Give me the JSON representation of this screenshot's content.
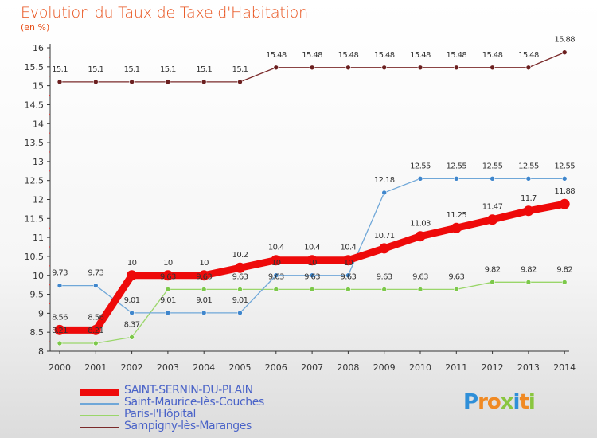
{
  "title": "Evolution du Taux de Taxe d'Habitation",
  "subtitle": "(en %)",
  "logo": {
    "text": [
      "P",
      "r",
      "o",
      "x",
      "i",
      "t",
      "i"
    ],
    "colors": [
      "#2f8fd8",
      "#f08a24",
      "#f08a24",
      "#8ac63f",
      "#2f8fd8",
      "#f08a24",
      "#8ac63f"
    ]
  },
  "chart_data": {
    "type": "line",
    "x": [
      "2000",
      "2001",
      "2002",
      "2003",
      "2004",
      "2005",
      "2006",
      "2007",
      "2008",
      "2009",
      "2010",
      "2011",
      "2012",
      "2013",
      "2014"
    ],
    "ylim": [
      8,
      16
    ],
    "yticks": [
      "8",
      "8.5",
      "9",
      "9.5",
      "10",
      "10.5",
      "11",
      "11.5",
      "12",
      "12.5",
      "13",
      "13.5",
      "14",
      "14.5",
      "15",
      "15.5",
      "16"
    ],
    "grid": false,
    "legend_position": "bottom-left",
    "series": [
      {
        "name": "SAINT-SERNIN-DU-PLAIN",
        "color": "#ee0a0a",
        "dot": "#ee0a0a",
        "values": [
          8.56,
          8.56,
          10,
          10,
          10,
          10.2,
          10.4,
          10.4,
          10.4,
          10.71,
          11.03,
          11.25,
          11.47,
          11.7,
          11.88
        ],
        "labels": [
          "8.56",
          "8.56",
          "10",
          "10",
          "10",
          "10.2",
          "10.4",
          "10.4",
          "10.4",
          "10.71",
          "11.03",
          "11.25",
          "11.47",
          "11.7",
          "11.88"
        ]
      },
      {
        "name": "Saint-Maurice-lès-Couches",
        "color": "#6fa7d8",
        "dot": "#3f86cc",
        "values": [
          9.73,
          9.73,
          9.01,
          9.01,
          9.01,
          9.01,
          10,
          10,
          10,
          12.18,
          12.55,
          12.55,
          12.55,
          12.55,
          12.55
        ],
        "labels": [
          "9.73",
          "9.73",
          "9.01",
          "9.01",
          "9.01",
          "9.01",
          "10",
          "10",
          "10",
          "12.18",
          "12.55",
          "12.55",
          "12.55",
          "12.55",
          "12.55"
        ]
      },
      {
        "name": "Paris-l'Hôpital",
        "color": "#9ad66a",
        "dot": "#7cc84a",
        "values": [
          8.21,
          8.21,
          8.37,
          9.63,
          9.63,
          9.63,
          9.63,
          9.63,
          9.63,
          9.63,
          9.63,
          9.63,
          9.82,
          9.82,
          9.82
        ],
        "labels": [
          "8.21",
          "8.21",
          "8.37",
          "9.63",
          "9.63",
          "9.63",
          "9.63",
          "9.63",
          "9.63",
          "9.63",
          "9.63",
          "9.63",
          "9.82",
          "9.82",
          "9.82"
        ]
      },
      {
        "name": "Sampigny-lès-Maranges",
        "color": "#7a2a2a",
        "dot": "#6b1f1f",
        "values": [
          15.1,
          15.1,
          15.1,
          15.1,
          15.1,
          15.1,
          15.48,
          15.48,
          15.48,
          15.48,
          15.48,
          15.48,
          15.48,
          15.48,
          15.88
        ],
        "labels": [
          "15.1",
          "15.1",
          "15.1",
          "15.1",
          "15.1",
          "15.1",
          "15.48",
          "15.48",
          "15.48",
          "15.48",
          "15.48",
          "15.48",
          "15.48",
          "15.48",
          "15.88"
        ]
      }
    ]
  }
}
